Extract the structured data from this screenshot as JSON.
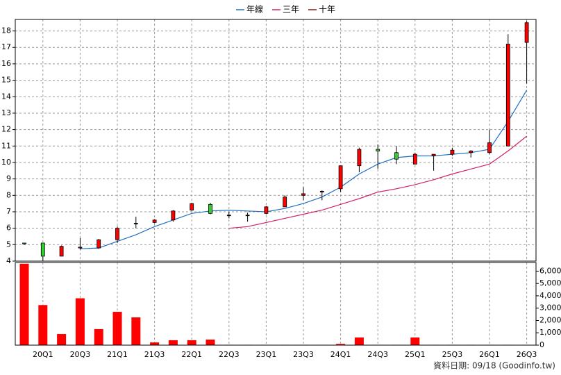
{
  "chart_data": [
    {
      "type": "candlestick",
      "categories": [
        null,
        "20Q1",
        null,
        "20Q3",
        null,
        "21Q1",
        null,
        "21Q3",
        null,
        "22Q1",
        null,
        "22Q3",
        null,
        "23Q1",
        null,
        "23Q3",
        null,
        "24Q1",
        null,
        "24Q3",
        null,
        "25Q1",
        null,
        "25Q3",
        null,
        "26Q1",
        null,
        "26Q3"
      ],
      "open": [
        5.1,
        5.1,
        4.3,
        4.8,
        4.8,
        5.3,
        6.3,
        6.35,
        6.5,
        7.1,
        7.45,
        6.8,
        6.8,
        6.9,
        7.3,
        8.0,
        8.2,
        8.4,
        9.8,
        10.8,
        10.6,
        9.9,
        10.4,
        10.5,
        10.6,
        10.6,
        11.0,
        17.3
      ],
      "high": [
        5.1,
        5.1,
        4.95,
        5.4,
        5.35,
        6.1,
        6.7,
        6.55,
        7.1,
        7.55,
        7.55,
        7.0,
        6.95,
        7.35,
        8.0,
        8.5,
        8.3,
        9.8,
        10.9,
        11.1,
        11.0,
        10.6,
        10.5,
        10.9,
        10.75,
        12.0,
        17.8,
        18.6
      ],
      "low": [
        5.0,
        4.0,
        4.3,
        4.7,
        4.75,
        5.1,
        6.0,
        6.3,
        6.4,
        7.05,
        6.85,
        6.6,
        6.4,
        6.85,
        7.3,
        7.7,
        7.7,
        8.2,
        9.4,
        9.6,
        9.9,
        9.9,
        9.5,
        10.4,
        10.3,
        10.5,
        11.0,
        14.8
      ],
      "close": [
        5.05,
        4.3,
        4.9,
        4.85,
        5.3,
        6.0,
        6.3,
        6.5,
        7.05,
        7.5,
        6.9,
        6.8,
        6.8,
        7.3,
        7.9,
        8.1,
        8.25,
        9.8,
        10.8,
        10.7,
        10.2,
        10.5,
        10.5,
        10.75,
        10.7,
        11.2,
        17.2,
        18.5
      ],
      "up_color": "#ff0000",
      "down_color": "#33cc33",
      "series": [
        {
          "name": "年線",
          "color": "#1f6fc0",
          "values": [
            null,
            null,
            null,
            4.75,
            4.8,
            5.2,
            5.6,
            6.1,
            6.5,
            6.9,
            7.05,
            7.1,
            7.05,
            7.0,
            7.2,
            7.5,
            7.9,
            8.5,
            9.3,
            9.9,
            10.3,
            10.4,
            10.4,
            10.5,
            10.6,
            10.8,
            12.5,
            14.4
          ]
        },
        {
          "name": "三年",
          "color": "#d0206a",
          "values": [
            null,
            null,
            null,
            null,
            null,
            null,
            null,
            null,
            null,
            null,
            null,
            6.0,
            6.1,
            6.35,
            6.6,
            6.85,
            7.1,
            7.45,
            7.8,
            8.2,
            8.4,
            8.65,
            8.95,
            9.3,
            9.6,
            9.9,
            10.7,
            11.6
          ]
        },
        {
          "name": "十年",
          "color": "#8b1a1a",
          "values": [
            null,
            null,
            null,
            null,
            null,
            null,
            null,
            null,
            null,
            null,
            null,
            null,
            null,
            null,
            null,
            null,
            null,
            null,
            null,
            null,
            null,
            null,
            null,
            null,
            null,
            null,
            null,
            null
          ]
        }
      ],
      "ylim": [
        4,
        18.7
      ],
      "yticks": [
        4,
        5,
        6,
        7,
        8,
        9,
        10,
        11,
        12,
        13,
        14,
        15,
        16,
        17,
        18
      ],
      "grid": true
    },
    {
      "type": "bar",
      "values": [
        6600,
        3250,
        900,
        3800,
        1300,
        2700,
        2250,
        220,
        400,
        400,
        450,
        30,
        30,
        30,
        30,
        30,
        30,
        100,
        620,
        30,
        30,
        620,
        30,
        30,
        30,
        30,
        30,
        30
      ],
      "color": "#ff0000",
      "ylim": [
        0,
        6700
      ],
      "yticks": [
        0,
        {
          "value": 1000,
          "label": "1,000"
        },
        {
          "value": 2000,
          "label": "2,000"
        },
        {
          "value": 3000,
          "label": "3,000"
        },
        {
          "value": 4000,
          "label": "4,000"
        },
        {
          "value": 5000,
          "label": "5,000"
        },
        {
          "value": 6000,
          "label": "6,000"
        }
      ],
      "grid": true
    }
  ],
  "footer": "資料日期: 09/18 (Goodinfo.tw)"
}
